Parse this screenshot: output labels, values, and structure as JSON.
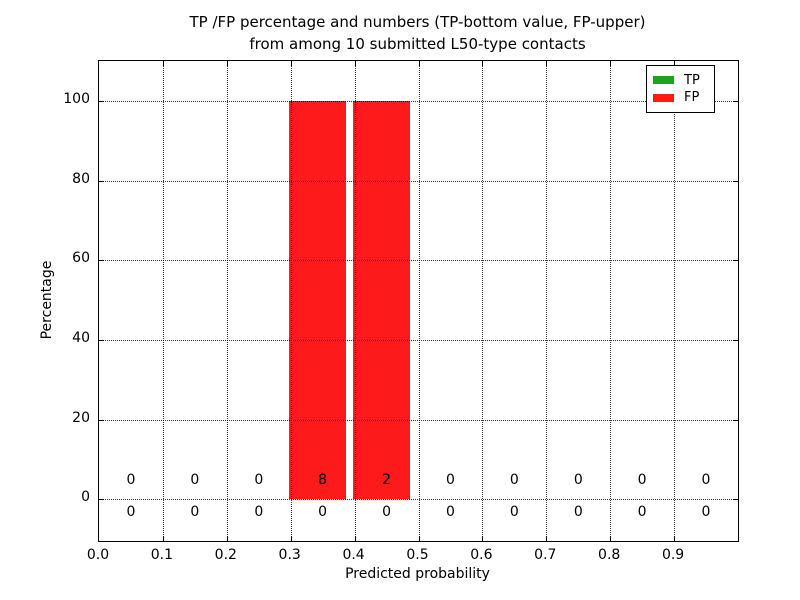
{
  "figure": {
    "title_line1": "TP /FP percentage and numbers (TP-bottom value, FP-upper)",
    "title_line2": "from among 10 submitted L50-type contacts",
    "xlabel": "Predicted probability",
    "ylabel": "Percentage"
  },
  "legend": {
    "items": [
      {
        "label": "TP",
        "color": "#1fa01f"
      },
      {
        "label": "FP",
        "color": "#fc1a1a"
      }
    ]
  },
  "chart_data": {
    "type": "bar",
    "title": "TP /FP percentage and numbers (TP-bottom value, FP-upper) from among 10 submitted L50-type contacts",
    "xlabel": "Predicted probability",
    "ylabel": "Percentage",
    "xlim": [
      0.0,
      1.0
    ],
    "ylim": [
      -10.5,
      110
    ],
    "xticks": [
      "0.0",
      "0.1",
      "0.2",
      "0.3",
      "0.4",
      "0.5",
      "0.6",
      "0.7",
      "0.8",
      "0.9"
    ],
    "yticks": [
      0,
      20,
      40,
      60,
      80,
      100
    ],
    "grid": "dotted",
    "legend_position": "upper-right",
    "bin_edges": [
      0.0,
      0.1,
      0.2,
      0.3,
      0.4,
      0.5,
      0.6,
      0.7,
      0.8,
      0.9
    ],
    "bin_centers": [
      0.05,
      0.15,
      0.25,
      0.35,
      0.45,
      0.55,
      0.65,
      0.75,
      0.85,
      0.95
    ],
    "bar_width": 0.09,
    "series": [
      {
        "name": "TP",
        "color": "#1fa01f",
        "percent": [
          0,
          0,
          0,
          0,
          0,
          0,
          0,
          0,
          0,
          0
        ],
        "counts": [
          0,
          0,
          0,
          0,
          0,
          0,
          0,
          0,
          0,
          0
        ],
        "count_label_y": -3.5
      },
      {
        "name": "FP",
        "color": "#fc1a1a",
        "percent": [
          0,
          0,
          0,
          100,
          100,
          0,
          0,
          0,
          0,
          0
        ],
        "counts": [
          0,
          0,
          0,
          8,
          2,
          0,
          0,
          0,
          0,
          0
        ],
        "count_label_y": 4.5
      }
    ]
  }
}
